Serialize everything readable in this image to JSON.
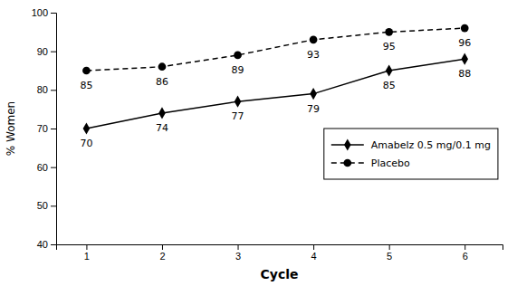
{
  "chart_data": {
    "type": "line",
    "x": [
      1,
      2,
      3,
      4,
      5,
      6
    ],
    "series": [
      {
        "name": "Amabelz 0.5 mg/0.1 mg",
        "color": "#000000",
        "values": [
          70,
          74,
          77,
          79,
          85,
          88
        ],
        "marker": "diamond",
        "line_style": "solid"
      },
      {
        "name": "Placebo",
        "color": "#000000",
        "values": [
          85,
          86,
          89,
          93,
          95,
          96
        ],
        "marker": "circle",
        "line_style": "dashed"
      }
    ],
    "x_label": "Cycle",
    "y_label": "% Women",
    "xlim": [
      0.6,
      6.5
    ],
    "xticks": [
      1,
      2,
      3,
      4,
      5,
      6
    ],
    "ylim": [
      40,
      100
    ],
    "yticks": [
      40,
      50,
      60,
      70,
      80,
      90,
      100
    ],
    "grid": false,
    "legend": "right",
    "data_labels": true
  }
}
